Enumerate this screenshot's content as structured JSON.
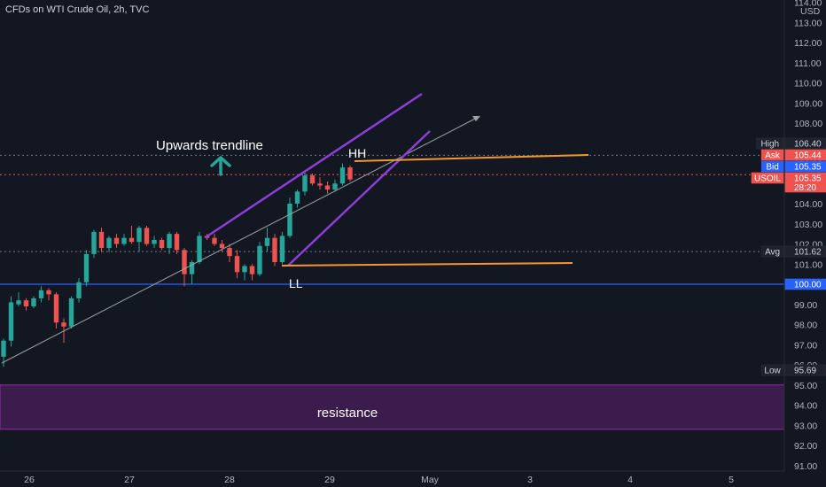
{
  "title": "CFDs on WTI Crude Oil, 2h, TVC",
  "chart_data": {
    "type": "candlestick",
    "title": "CFDs on WTI Crude Oil, 2h, TVC",
    "currency": "USD",
    "y_range": [
      90.6,
      114.2
    ],
    "y_ticks": [
      "91.00",
      "92.00",
      "93.00",
      "94.00",
      "95.00",
      "96.00",
      "97.00",
      "98.00",
      "99.00",
      "100.00",
      "101.00",
      "102.00",
      "103.00",
      "104.00",
      "105.00",
      "106.00",
      "107.00",
      "108.00",
      "109.00",
      "110.00",
      "111.00",
      "112.00",
      "113.00",
      "114.00"
    ],
    "x_ticks": [
      "26",
      "27",
      "28",
      "29",
      "May",
      "3",
      "4",
      "5"
    ],
    "up_color": "#26a69a",
    "down_color": "#ef5350",
    "candles": [
      {
        "o": 96.4,
        "h": 97.3,
        "l": 95.9,
        "c": 97.2
      },
      {
        "o": 97.2,
        "h": 99.4,
        "l": 96.9,
        "c": 99.1
      },
      {
        "o": 99.0,
        "h": 99.6,
        "l": 98.9,
        "c": 99.2
      },
      {
        "o": 99.2,
        "h": 99.3,
        "l": 98.7,
        "c": 98.9
      },
      {
        "o": 98.9,
        "h": 99.4,
        "l": 98.8,
        "c": 99.3
      },
      {
        "o": 99.3,
        "h": 99.9,
        "l": 99.1,
        "c": 99.7
      },
      {
        "o": 99.7,
        "h": 99.8,
        "l": 99.2,
        "c": 99.5
      },
      {
        "o": 99.5,
        "h": 99.6,
        "l": 97.8,
        "c": 98.1
      },
      {
        "o": 98.1,
        "h": 98.3,
        "l": 97.1,
        "c": 97.9
      },
      {
        "o": 97.9,
        "h": 99.4,
        "l": 97.8,
        "c": 99.3
      },
      {
        "o": 99.3,
        "h": 100.3,
        "l": 99.1,
        "c": 100.1
      },
      {
        "o": 100.1,
        "h": 101.7,
        "l": 99.9,
        "c": 101.5
      },
      {
        "o": 101.5,
        "h": 102.7,
        "l": 101.3,
        "c": 102.6
      },
      {
        "o": 102.6,
        "h": 102.8,
        "l": 101.6,
        "c": 101.8
      },
      {
        "o": 101.8,
        "h": 102.4,
        "l": 101.6,
        "c": 102.3
      },
      {
        "o": 102.3,
        "h": 102.5,
        "l": 101.8,
        "c": 102.0
      },
      {
        "o": 102.0,
        "h": 102.5,
        "l": 101.9,
        "c": 102.3
      },
      {
        "o": 102.3,
        "h": 102.9,
        "l": 102.0,
        "c": 102.1
      },
      {
        "o": 102.1,
        "h": 102.9,
        "l": 101.6,
        "c": 102.8
      },
      {
        "o": 102.8,
        "h": 102.9,
        "l": 101.9,
        "c": 102.0
      },
      {
        "o": 102.0,
        "h": 102.4,
        "l": 101.8,
        "c": 102.2
      },
      {
        "o": 102.2,
        "h": 102.3,
        "l": 101.7,
        "c": 101.8
      },
      {
        "o": 101.8,
        "h": 102.6,
        "l": 101.5,
        "c": 102.5
      },
      {
        "o": 102.5,
        "h": 102.6,
        "l": 101.5,
        "c": 101.7
      },
      {
        "o": 101.7,
        "h": 101.8,
        "l": 99.9,
        "c": 100.5
      },
      {
        "o": 100.5,
        "h": 101.2,
        "l": 100.0,
        "c": 101.1
      },
      {
        "o": 101.1,
        "h": 102.6,
        "l": 101.0,
        "c": 102.4
      },
      {
        "o": 102.4,
        "h": 102.5,
        "l": 102.2,
        "c": 102.3
      },
      {
        "o": 102.3,
        "h": 102.5,
        "l": 101.9,
        "c": 102.0
      },
      {
        "o": 102.0,
        "h": 102.2,
        "l": 101.6,
        "c": 101.8
      },
      {
        "o": 101.8,
        "h": 102.0,
        "l": 101.1,
        "c": 101.4
      },
      {
        "o": 101.4,
        "h": 101.7,
        "l": 100.3,
        "c": 100.6
      },
      {
        "o": 100.6,
        "h": 101.0,
        "l": 100.2,
        "c": 100.9
      },
      {
        "o": 100.9,
        "h": 101.0,
        "l": 100.2,
        "c": 100.5
      },
      {
        "o": 100.5,
        "h": 102.1,
        "l": 100.4,
        "c": 101.9
      },
      {
        "o": 101.9,
        "h": 102.8,
        "l": 101.6,
        "c": 102.3
      },
      {
        "o": 102.3,
        "h": 102.5,
        "l": 100.9,
        "c": 101.1
      },
      {
        "o": 101.1,
        "h": 102.6,
        "l": 101.0,
        "c": 102.4
      },
      {
        "o": 102.4,
        "h": 104.3,
        "l": 102.3,
        "c": 104.0
      },
      {
        "o": 104.0,
        "h": 104.7,
        "l": 103.8,
        "c": 104.6
      },
      {
        "o": 104.6,
        "h": 105.6,
        "l": 104.4,
        "c": 105.4
      },
      {
        "o": 105.4,
        "h": 105.5,
        "l": 104.9,
        "c": 105.0
      },
      {
        "o": 105.0,
        "h": 105.3,
        "l": 104.7,
        "c": 104.9
      },
      {
        "o": 104.9,
        "h": 105.1,
        "l": 104.5,
        "c": 104.7
      },
      {
        "o": 104.7,
        "h": 105.2,
        "l": 104.6,
        "c": 105.0
      },
      {
        "o": 105.0,
        "h": 106.0,
        "l": 104.9,
        "c": 105.8
      },
      {
        "o": 105.8,
        "h": 105.9,
        "l": 105.1,
        "c": 105.2
      }
    ],
    "price_labels": [
      {
        "label": "High",
        "value": "106.40",
        "price": 106.4,
        "bg": "#1e222d",
        "fg": "#d1d4dc",
        "border": "#2a2e39"
      },
      {
        "label": "Ask",
        "value": "105.44",
        "price": 105.44,
        "bg": "#ef5350",
        "fg": "#ffffff",
        "border": "#ef5350"
      },
      {
        "label": "Bid",
        "value": "105.35",
        "price": 105.35,
        "bg": "#2962ff",
        "fg": "#ffffff",
        "border": "#2962ff"
      },
      {
        "label": "USOIL",
        "value": "105.35",
        "price": 105.35,
        "bg": "#ef5350",
        "fg": "#ffffff",
        "border": "#ef5350",
        "sub": "28:20"
      },
      {
        "label": "Avg",
        "value": "101.62",
        "price": 101.62,
        "bg": "#1e222d",
        "fg": "#d1d4dc",
        "border": "#2a2e39"
      },
      {
        "label": "",
        "value": "100.00",
        "price": 100.0,
        "bg": "#2962ff",
        "fg": "#ffffff",
        "border": "#2962ff"
      },
      {
        "label": "Low",
        "value": "95.69",
        "price": 95.69,
        "bg": "#1e222d",
        "fg": "#d1d4dc",
        "border": "#2a2e39"
      }
    ],
    "annotations": {
      "trendline_label": "Upwards trendline",
      "hh": "HH",
      "ll": "LL",
      "resistance": "resistance"
    },
    "horizontal_line_price": 100.0,
    "zone": {
      "from": 92.8,
      "to": 95.0
    }
  }
}
